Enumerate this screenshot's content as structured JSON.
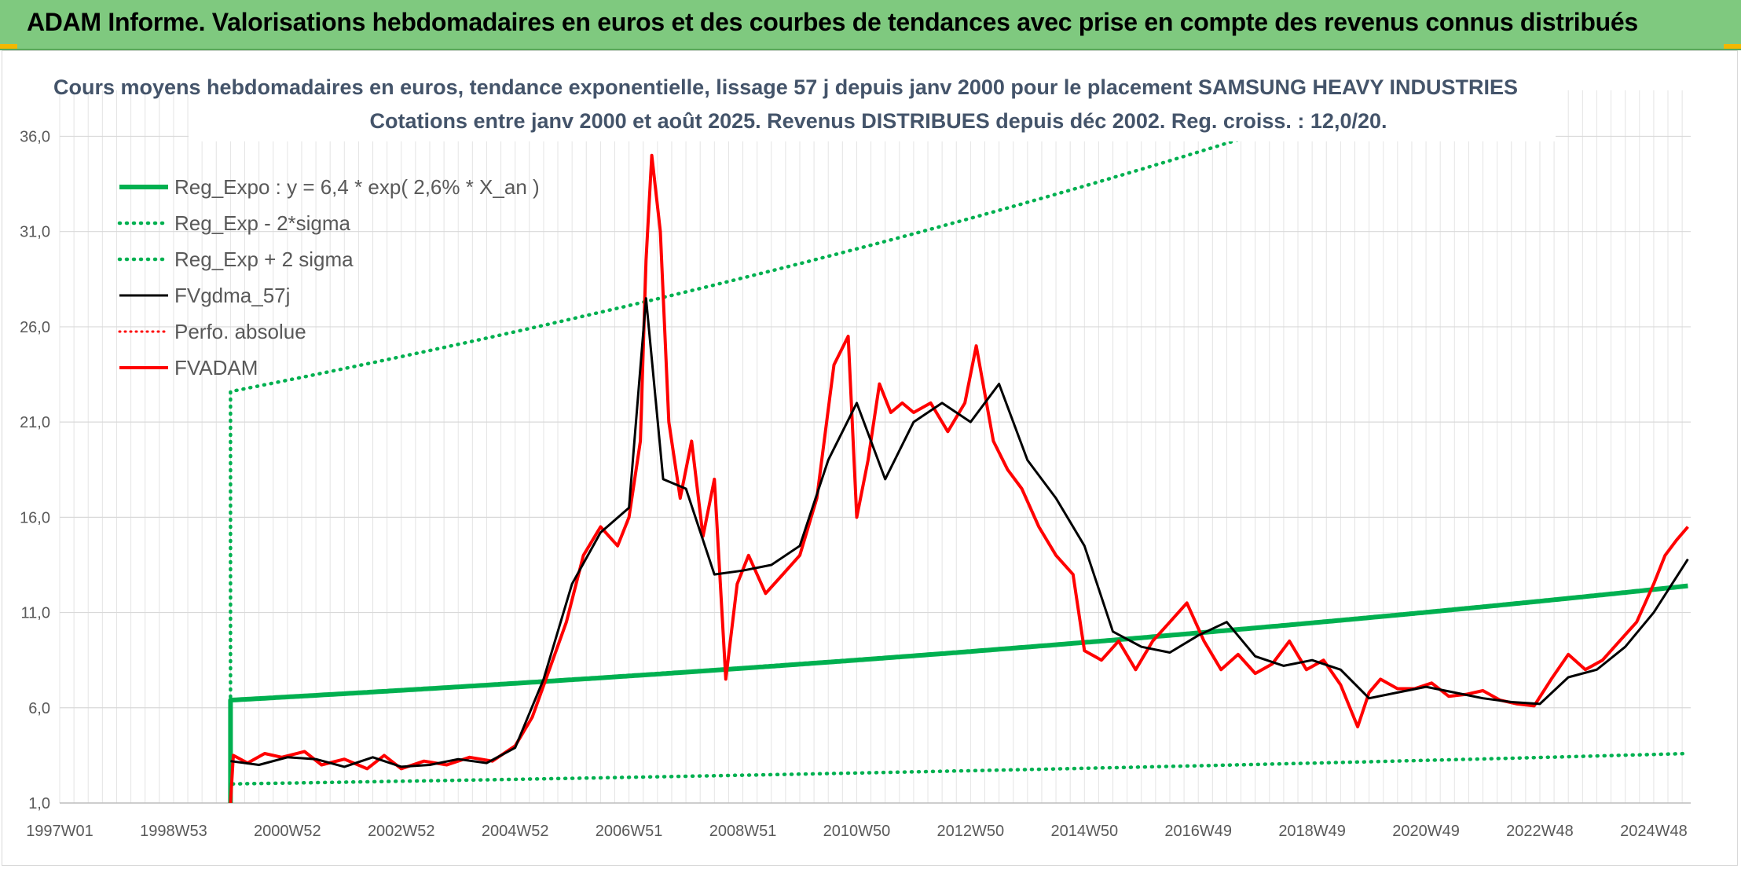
{
  "banner": {
    "title": "ADAM Informe. Valorisations hebdomadaires en euros et des courbes de tendances avec prise en compte des revenus connus distribués"
  },
  "colors": {
    "banner_bg": "#7fc97f",
    "reg_expo": "#00b050",
    "fv_gdma": "#000000",
    "fv_adam": "#ff0000",
    "perfo": "#ff0000",
    "grid": "#d9d9d9"
  },
  "chart_data": {
    "type": "line",
    "title": "Cours moyens hebdomadaires en euros, tendance exponentielle, lissage 57 j depuis janv 2000 pour le placement SAMSUNG HEAVY INDUSTRIES",
    "subtitle": "Cotations entre janv 2000 et août 2025. Revenus DISTRIBUES depuis déc 2002. Reg. croiss. : 12,0/20.",
    "xlabel": "",
    "ylabel": "",
    "ylim": [
      1.0,
      38.0
    ],
    "yticks": [
      "1,0",
      "6,0",
      "11,0",
      "16,0",
      "21,0",
      "26,0",
      "31,0",
      "36,0"
    ],
    "ytick_values": [
      1,
      6,
      11,
      16,
      21,
      26,
      31,
      36
    ],
    "xlim": [
      1997.0,
      2025.65
    ],
    "xticks": [
      "1997W01",
      "1998W53",
      "2000W52",
      "2002W52",
      "2004W52",
      "2006W51",
      "2008W51",
      "2010W50",
      "2012W50",
      "2014W50",
      "2016W49",
      "2018W49",
      "2020W49",
      "2022W48",
      "2024W48"
    ],
    "xtick_values": [
      1997.0,
      1999.0,
      2001.0,
      2003.0,
      2005.0,
      2007.0,
      2009.0,
      2011.0,
      2013.0,
      2015.0,
      2017.0,
      2019.0,
      2021.0,
      2023.0,
      2025.0
    ],
    "grid": true,
    "legend_position": "top-left",
    "series": [
      {
        "name": "Reg_Expo : y = 6,4 * exp( 2,6% *  X_an )",
        "style": "solid-thick",
        "x": [
          2000.0,
          2025.6
        ],
        "y": [
          6.4,
          12.4
        ]
      },
      {
        "name": "Reg_Exp - 2*sigma",
        "style": "dotted",
        "x": [
          2000.0,
          2025.6
        ],
        "y": [
          2.0,
          3.6
        ]
      },
      {
        "name": "Reg_Exp + 2 sigma",
        "style": "dotted",
        "x": [
          2000.0,
          2025.6
        ],
        "y": [
          22.6,
          44.0
        ]
      },
      {
        "name": "FVgdma_57j",
        "style": "solid",
        "x": [
          2000.0,
          2000.5,
          2001.0,
          2001.5,
          2002.0,
          2002.5,
          2003.0,
          2003.5,
          2004.0,
          2004.5,
          2005.0,
          2005.5,
          2006.0,
          2006.5,
          2007.0,
          2007.3,
          2007.6,
          2008.0,
          2008.5,
          2009.0,
          2009.5,
          2010.0,
          2010.5,
          2011.0,
          2011.5,
          2012.0,
          2012.5,
          2013.0,
          2013.5,
          2014.0,
          2014.5,
          2015.0,
          2015.5,
          2016.0,
          2016.5,
          2017.0,
          2017.5,
          2018.0,
          2018.5,
          2019.0,
          2019.5,
          2020.0,
          2020.5,
          2021.0,
          2021.5,
          2022.0,
          2022.5,
          2023.0,
          2023.5,
          2024.0,
          2024.5,
          2025.0,
          2025.6
        ],
        "y": [
          3.2,
          3.0,
          3.4,
          3.3,
          2.9,
          3.4,
          2.9,
          3.0,
          3.3,
          3.1,
          3.9,
          7.5,
          12.5,
          15.2,
          16.5,
          27.5,
          18.0,
          17.5,
          13.0,
          13.2,
          13.5,
          14.5,
          19.0,
          22.0,
          18.0,
          21.0,
          22.0,
          21.0,
          23.0,
          19.0,
          17.0,
          14.5,
          10.0,
          9.2,
          8.9,
          9.8,
          10.5,
          8.7,
          8.2,
          8.5,
          8.0,
          6.5,
          6.8,
          7.1,
          6.8,
          6.5,
          6.3,
          6.2,
          7.6,
          8.0,
          9.2,
          11.0,
          13.8
        ]
      },
      {
        "name": "Perfo. absolue",
        "style": "dotted-red",
        "x": [],
        "y": []
      },
      {
        "name": "FVADAM",
        "style": "solid-thick-red",
        "x": [
          2000.0,
          2000.05,
          2000.3,
          2000.6,
          2000.9,
          2001.3,
          2001.6,
          2002.0,
          2002.4,
          2002.7,
          2003.0,
          2003.4,
          2003.8,
          2004.2,
          2004.6,
          2005.0,
          2005.3,
          2005.6,
          2005.9,
          2006.2,
          2006.5,
          2006.8,
          2007.0,
          2007.2,
          2007.3,
          2007.4,
          2007.55,
          2007.7,
          2007.9,
          2008.1,
          2008.3,
          2008.5,
          2008.7,
          2008.9,
          2009.1,
          2009.4,
          2009.7,
          2010.0,
          2010.3,
          2010.6,
          2010.85,
          2011.0,
          2011.2,
          2011.4,
          2011.6,
          2011.8,
          2012.0,
          2012.3,
          2012.6,
          2012.9,
          2013.1,
          2013.4,
          2013.65,
          2013.9,
          2014.2,
          2014.5,
          2014.8,
          2015.0,
          2015.3,
          2015.6,
          2015.9,
          2016.2,
          2016.5,
          2016.8,
          2017.1,
          2017.4,
          2017.7,
          2018.0,
          2018.3,
          2018.6,
          2018.9,
          2019.2,
          2019.5,
          2019.8,
          2020.0,
          2020.2,
          2020.5,
          2020.8,
          2021.1,
          2021.4,
          2021.7,
          2022.0,
          2022.3,
          2022.6,
          2022.9,
          2023.2,
          2023.5,
          2023.8,
          2024.1,
          2024.4,
          2024.7,
          2025.0,
          2025.2,
          2025.4,
          2025.6
        ],
        "y": [
          1.0,
          3.5,
          3.1,
          3.6,
          3.4,
          3.7,
          3.0,
          3.3,
          2.8,
          3.5,
          2.8,
          3.2,
          3.0,
          3.4,
          3.2,
          4.0,
          5.5,
          8.0,
          10.5,
          14.0,
          15.5,
          14.5,
          16.0,
          20.0,
          29.5,
          35.0,
          31.0,
          21.0,
          17.0,
          20.0,
          15.0,
          18.0,
          7.5,
          12.5,
          14.0,
          12.0,
          13.0,
          14.0,
          17.0,
          24.0,
          25.5,
          16.0,
          19.0,
          23.0,
          21.5,
          22.0,
          21.5,
          22.0,
          20.5,
          22.0,
          25.0,
          20.0,
          18.5,
          17.5,
          15.5,
          14.0,
          13.0,
          9.0,
          8.5,
          9.5,
          8.0,
          9.5,
          10.5,
          11.5,
          9.5,
          8.0,
          8.8,
          7.8,
          8.3,
          9.5,
          8.0,
          8.5,
          7.2,
          5.0,
          6.8,
          7.5,
          7.0,
          7.0,
          7.3,
          6.6,
          6.7,
          6.9,
          6.4,
          6.2,
          6.1,
          7.5,
          8.8,
          8.0,
          8.5,
          9.5,
          10.5,
          12.5,
          14.0,
          14.8,
          15.5
        ]
      }
    ]
  }
}
